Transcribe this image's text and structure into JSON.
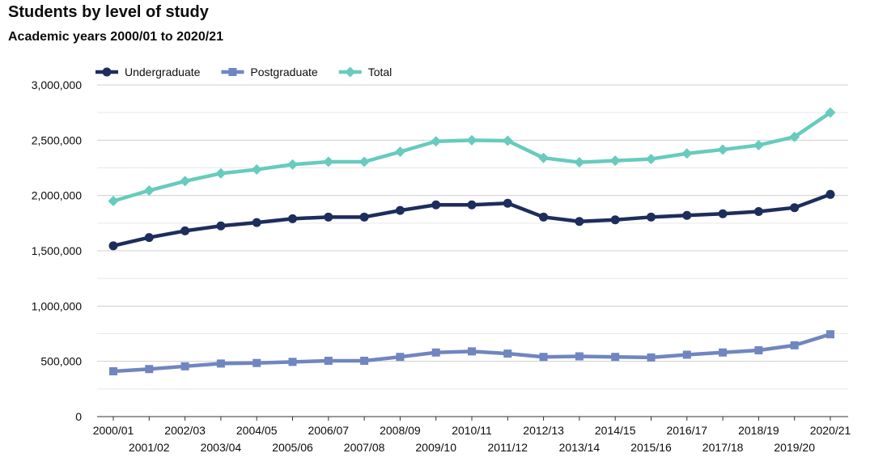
{
  "chart_data": {
    "type": "line",
    "title": "Students by level of study",
    "subtitle": "Academic years 2000/01 to 2020/21",
    "categories": [
      "2000/01",
      "2001/02",
      "2002/03",
      "2003/04",
      "2004/05",
      "2005/06",
      "2006/07",
      "2007/08",
      "2008/09",
      "2009/10",
      "2010/11",
      "2011/12",
      "2012/13",
      "2013/14",
      "2014/15",
      "2015/16",
      "2016/17",
      "2017/18",
      "2018/19",
      "2019/20",
      "2020/21"
    ],
    "series": [
      {
        "name": "Undergraduate",
        "color": "#1d2d5c",
        "marker": "circle",
        "values": [
          1545000,
          1620000,
          1680000,
          1725000,
          1755000,
          1790000,
          1805000,
          1805000,
          1865000,
          1915000,
          1915000,
          1930000,
          1805000,
          1765000,
          1780000,
          1805000,
          1820000,
          1835000,
          1855000,
          1890000,
          2010000
        ]
      },
      {
        "name": "Postgraduate",
        "color": "#6f86c0",
        "marker": "square",
        "values": [
          410000,
          430000,
          455000,
          480000,
          485000,
          495000,
          505000,
          505000,
          540000,
          580000,
          590000,
          570000,
          540000,
          545000,
          540000,
          535000,
          560000,
          580000,
          600000,
          645000,
          745000
        ]
      },
      {
        "name": "Total",
        "color": "#67cbbd",
        "marker": "diamond",
        "values": [
          1950000,
          2045000,
          2130000,
          2200000,
          2235000,
          2280000,
          2305000,
          2305000,
          2395000,
          2490000,
          2500000,
          2495000,
          2340000,
          2300000,
          2315000,
          2330000,
          2380000,
          2415000,
          2455000,
          2530000,
          2750000
        ]
      }
    ],
    "ylim": [
      0,
      3000000
    ],
    "yticks": [
      0,
      500000,
      1000000,
      1500000,
      2000000,
      2500000,
      3000000
    ],
    "ytick_labels": [
      "0",
      "500,000",
      "1,000,000",
      "1,500,000",
      "2,000,000",
      "2,500,000",
      "3,000,000"
    ],
    "grid": true,
    "legend_position": "top-left"
  }
}
